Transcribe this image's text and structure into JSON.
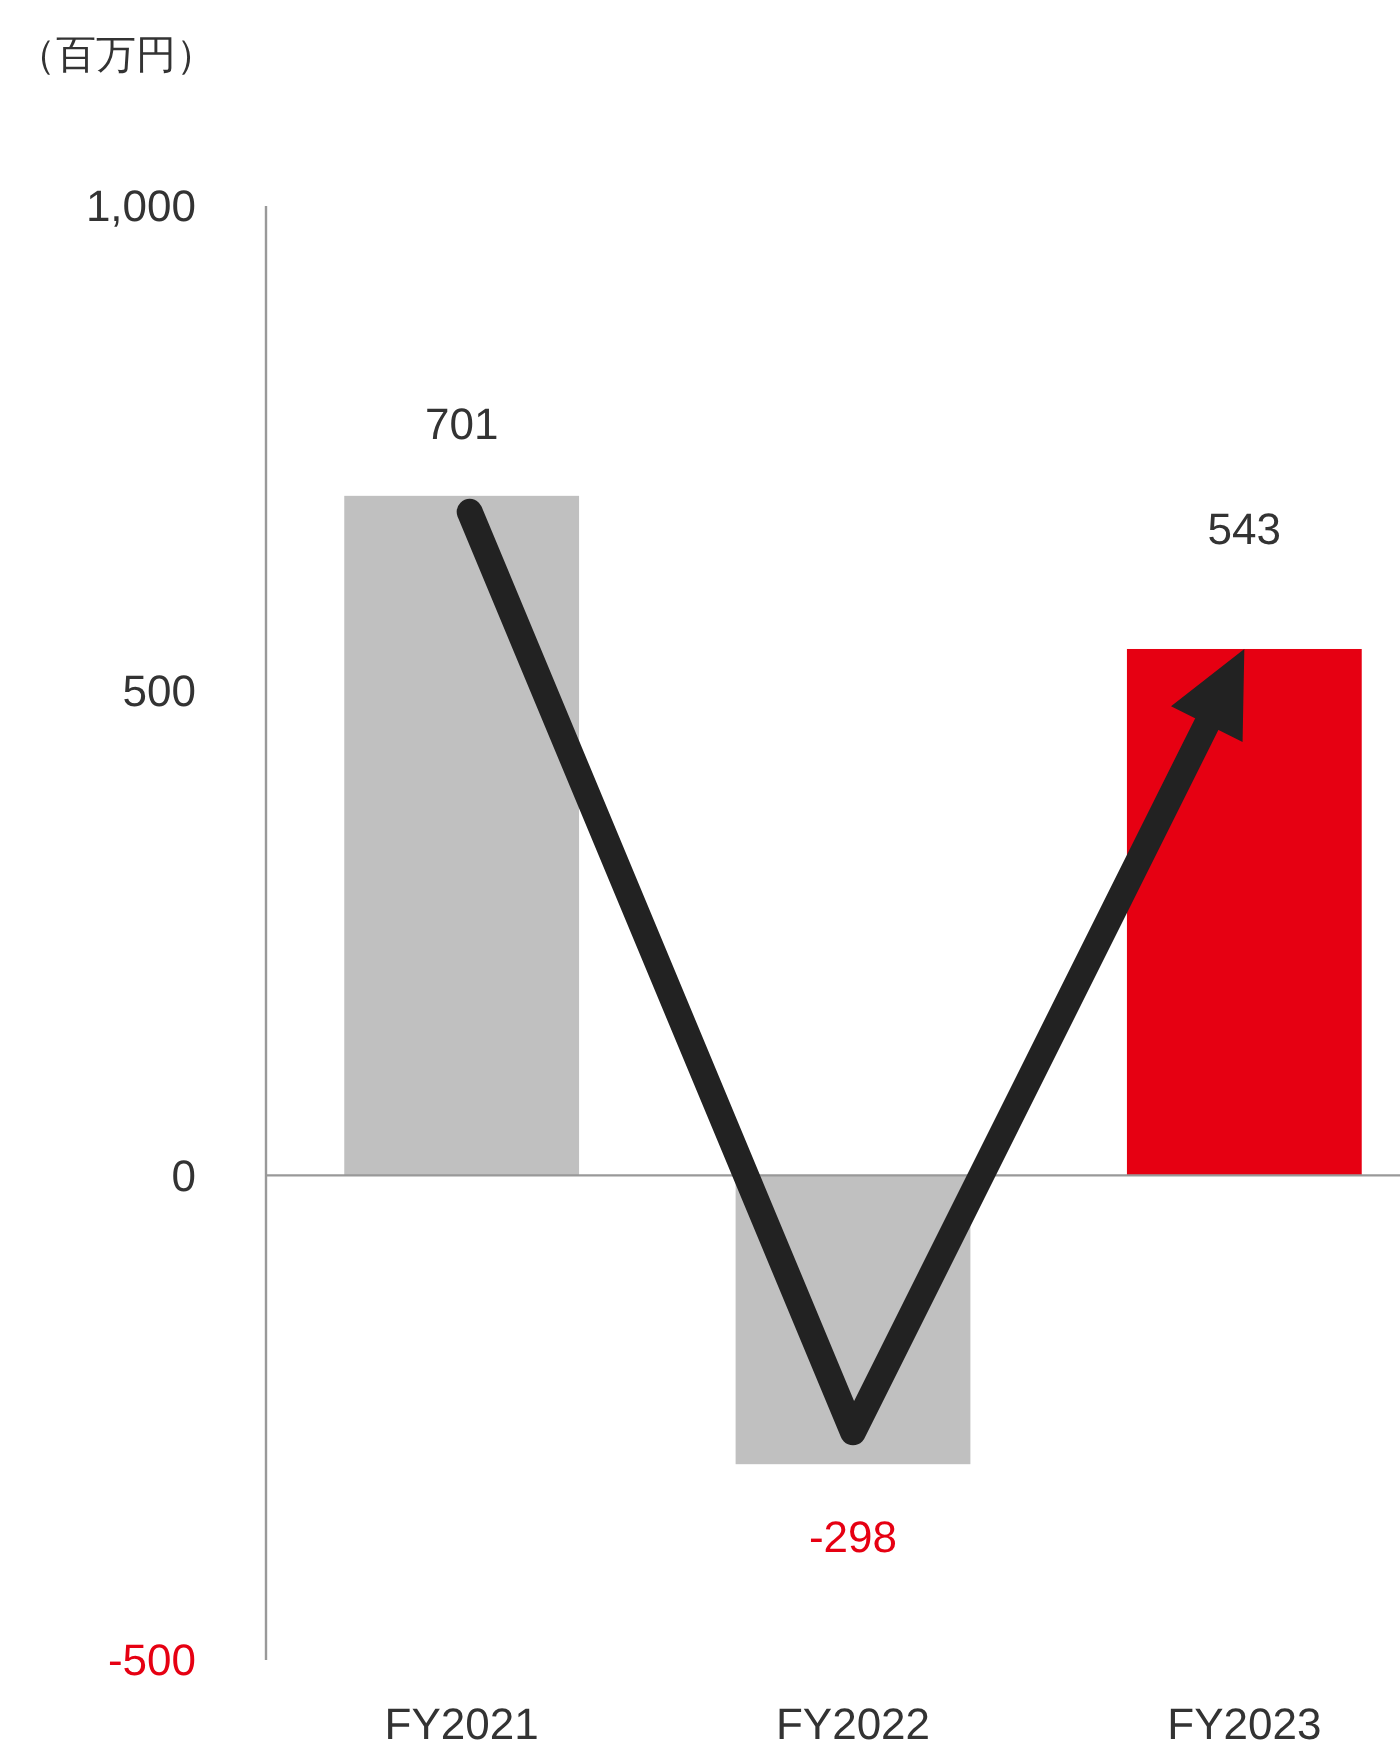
{
  "chart_data": {
    "type": "bar",
    "ylabel": "（百万円）",
    "categories": [
      "FY2021",
      "FY2022",
      "FY2023"
    ],
    "values": [
      701,
      -298,
      543
    ],
    "colors": [
      "#c0c0c0",
      "#c0c0c0",
      "#e60012"
    ],
    "ylim": [
      -500,
      1000
    ],
    "yticks": [
      {
        "value": -500,
        "label": "-500"
      },
      0,
      500,
      {
        "value": 1000,
        "label": "1,000"
      }
    ],
    "data_labels": true
  }
}
